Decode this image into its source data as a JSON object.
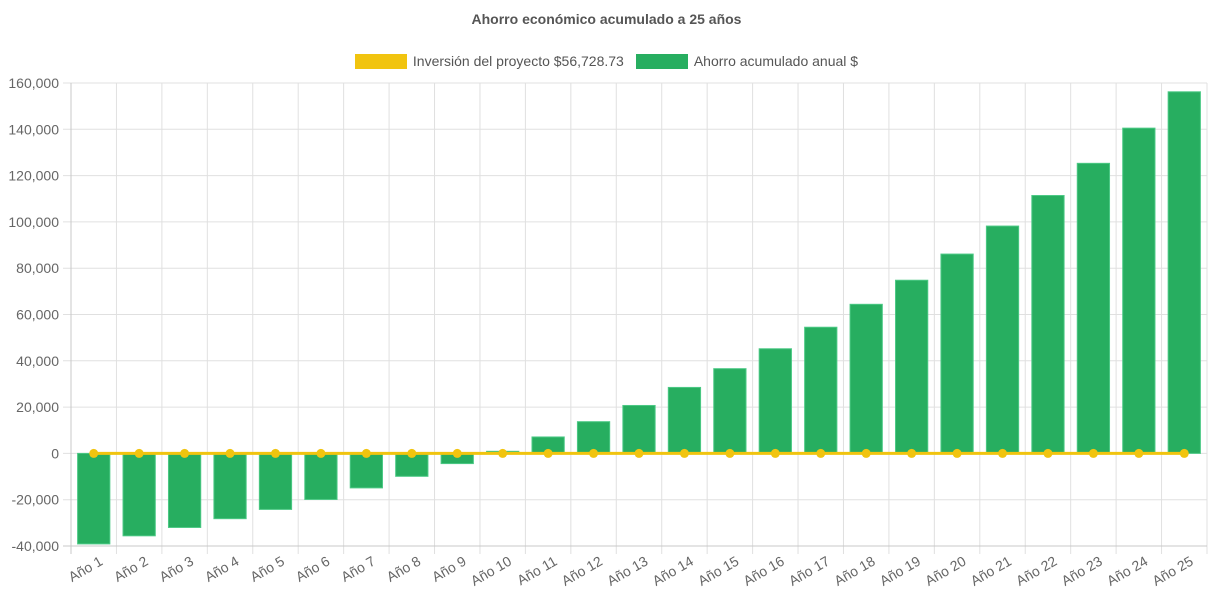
{
  "chart_data": {
    "type": "bar",
    "title": "Ahorro económico acumulado a 25 años",
    "xlabel": "",
    "ylabel": "",
    "ylim": [
      -40000,
      160000
    ],
    "yticks": [
      160000,
      140000,
      120000,
      100000,
      80000,
      60000,
      40000,
      20000,
      0,
      -20000,
      -40000
    ],
    "ytick_labels": [
      "160,000",
      "140,000",
      "120,000",
      "100,000",
      "80,000",
      "60,000",
      "40,000",
      "20,000",
      "0",
      "-20,000",
      "-40,000"
    ],
    "grid": true,
    "legend_position": "top",
    "categories": [
      "Año 1",
      "Año 2",
      "Año 3",
      "Año 4",
      "Año 5",
      "Año 6",
      "Año 7",
      "Año 8",
      "Año 9",
      "Año 10",
      "Año 11",
      "Año 12",
      "Año 13",
      "Año 14",
      "Año 15",
      "Año 16",
      "Año 17",
      "Año 18",
      "Año 19",
      "Año 20",
      "Año 21",
      "Año 22",
      "Año 23",
      "Año 24",
      "Año 25"
    ],
    "series": [
      {
        "name": "Inversión del proyecto $56,728.73",
        "type": "line",
        "color": "#f1c40f",
        "values": [
          0,
          0,
          0,
          0,
          0,
          0,
          0,
          0,
          0,
          0,
          0,
          0,
          0,
          0,
          0,
          0,
          0,
          0,
          0,
          0,
          0,
          0,
          0,
          0,
          0
        ]
      },
      {
        "name": "Ahorro acumulado anual $",
        "type": "bar",
        "color": "#27ae60",
        "values": [
          -39100,
          -35600,
          -32000,
          -28200,
          -24200,
          -19900,
          -14900,
          -9900,
          -4400,
          900,
          7100,
          13700,
          20700,
          28500,
          36600,
          45200,
          54500,
          64400,
          74800,
          86100,
          98200,
          111400,
          125300,
          140500,
          156200
        ]
      }
    ]
  }
}
